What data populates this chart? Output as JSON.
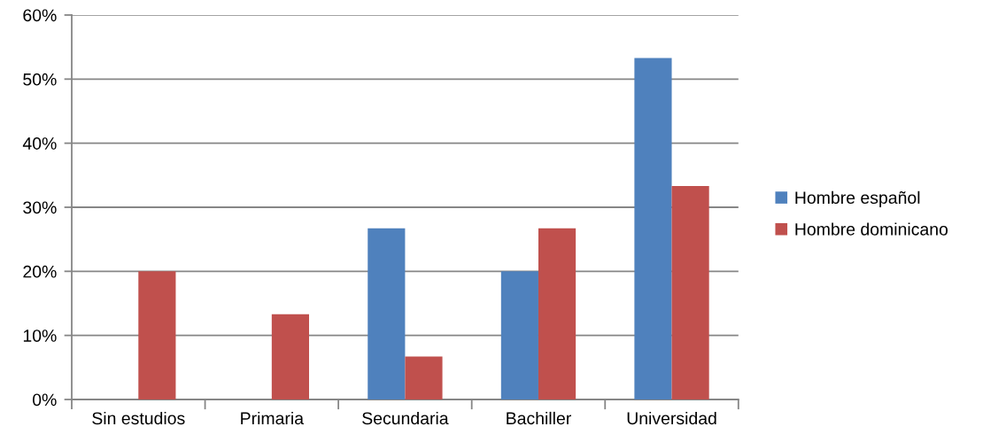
{
  "chart_data": {
    "type": "bar",
    "categories": [
      "Sin estudios",
      "Primaria",
      "Secundaria",
      "Bachiller",
      "Universidad"
    ],
    "series": [
      {
        "name": "Hombre español",
        "color": "#4f81bd",
        "values": [
          0,
          0,
          26.7,
          20,
          53.3
        ]
      },
      {
        "name": "Hombre dominicano",
        "color": "#c0504d",
        "values": [
          20,
          13.3,
          6.7,
          26.7,
          33.3
        ]
      }
    ],
    "ylim": [
      0,
      60
    ],
    "yticks": [
      {
        "value": 0,
        "label": "0%"
      },
      {
        "value": 10,
        "label": "10%"
      },
      {
        "value": 20,
        "label": "20%"
      },
      {
        "value": 30,
        "label": "30%"
      },
      {
        "value": 40,
        "label": "40%"
      },
      {
        "value": 50,
        "label": "50%"
      },
      {
        "value": 60,
        "label": "60%"
      }
    ],
    "grid": "y",
    "legend": "right"
  }
}
